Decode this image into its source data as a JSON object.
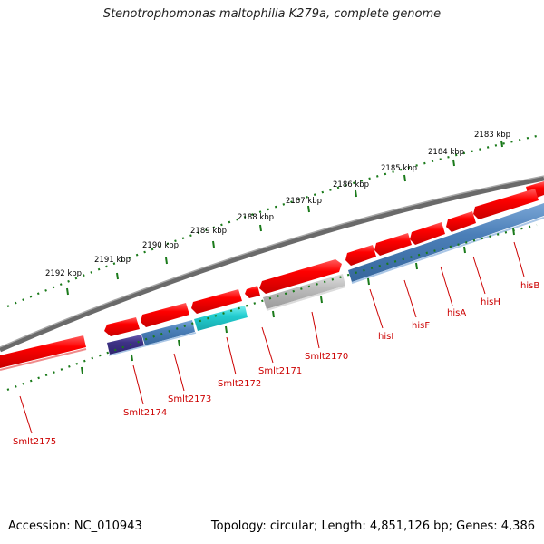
{
  "title": "Stenotrophomonas maltophilia K279a, complete genome",
  "accession": "Accession: NC_010943",
  "summary": "Topology: circular; Length: 4,851,126 bp; Genes: 4,386",
  "colors": {
    "forward_gene": "#e01010",
    "reverse_gene_blue": "#4b7fb8",
    "reverse_gene_purple": "#4a3a8c",
    "reverse_gene_cyan": "#2cc8cc",
    "reverse_gene_grey": "#b8b8b8",
    "backbone": "#808080",
    "tick": "#1a7a1a",
    "label": "#cc0000"
  },
  "scale_labels": [
    "2183 kbp",
    "2184 kbp",
    "2185 kbp",
    "2186 kbp",
    "2187 kbp",
    "2188 kbp",
    "2189 kbp",
    "2190 kbp",
    "2191 kbp",
    "2192 kbp"
  ],
  "gene_labels": [
    "hisB",
    "hisH",
    "hisA",
    "hisF",
    "hisI",
    "Smlt2170",
    "Smlt2171",
    "Smlt2172",
    "Smlt2173",
    "Smlt2174",
    "Smlt2175"
  ]
}
